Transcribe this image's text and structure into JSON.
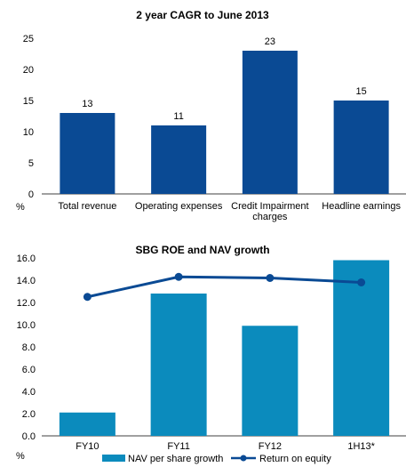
{
  "chart_data": [
    {
      "type": "bar",
      "title": "2 year CAGR to June 2013",
      "ylabel": "%",
      "ylim": [
        0,
        25
      ],
      "yticks": [
        "0",
        "5",
        "10",
        "15",
        "20",
        "25"
      ],
      "categories": [
        [
          "Total revenue"
        ],
        [
          "Operating expenses"
        ],
        [
          "Credit Impairment",
          "charges"
        ],
        [
          "Headline earnings"
        ]
      ],
      "values": [
        13,
        11,
        23,
        15
      ],
      "data_labels": [
        "13",
        "11",
        "23",
        "15"
      ],
      "colors": {
        "bar": "#0a4a94"
      },
      "grid": false,
      "legend": "none"
    },
    {
      "type": "bar",
      "title": "SBG ROE and NAV growth",
      "ylabel": "%",
      "ylim": [
        0,
        16
      ],
      "yticks": [
        "0.0",
        "2.0",
        "4.0",
        "6.0",
        "8.0",
        "10.0",
        "12.0",
        "14.0",
        "16.0"
      ],
      "categories": [
        "FY10",
        "FY11",
        "FY12",
        "1H13*"
      ],
      "series": [
        {
          "name": "NAV per share growth",
          "kind": "bar",
          "values": [
            2.1,
            12.8,
            9.9,
            15.8
          ],
          "color": "#0b8bbd"
        },
        {
          "name": "Return on equity",
          "kind": "line",
          "values": [
            12.5,
            14.3,
            14.2,
            13.8
          ],
          "color": "#0a4a94"
        }
      ],
      "grid": false,
      "legend": "bottom"
    }
  ]
}
